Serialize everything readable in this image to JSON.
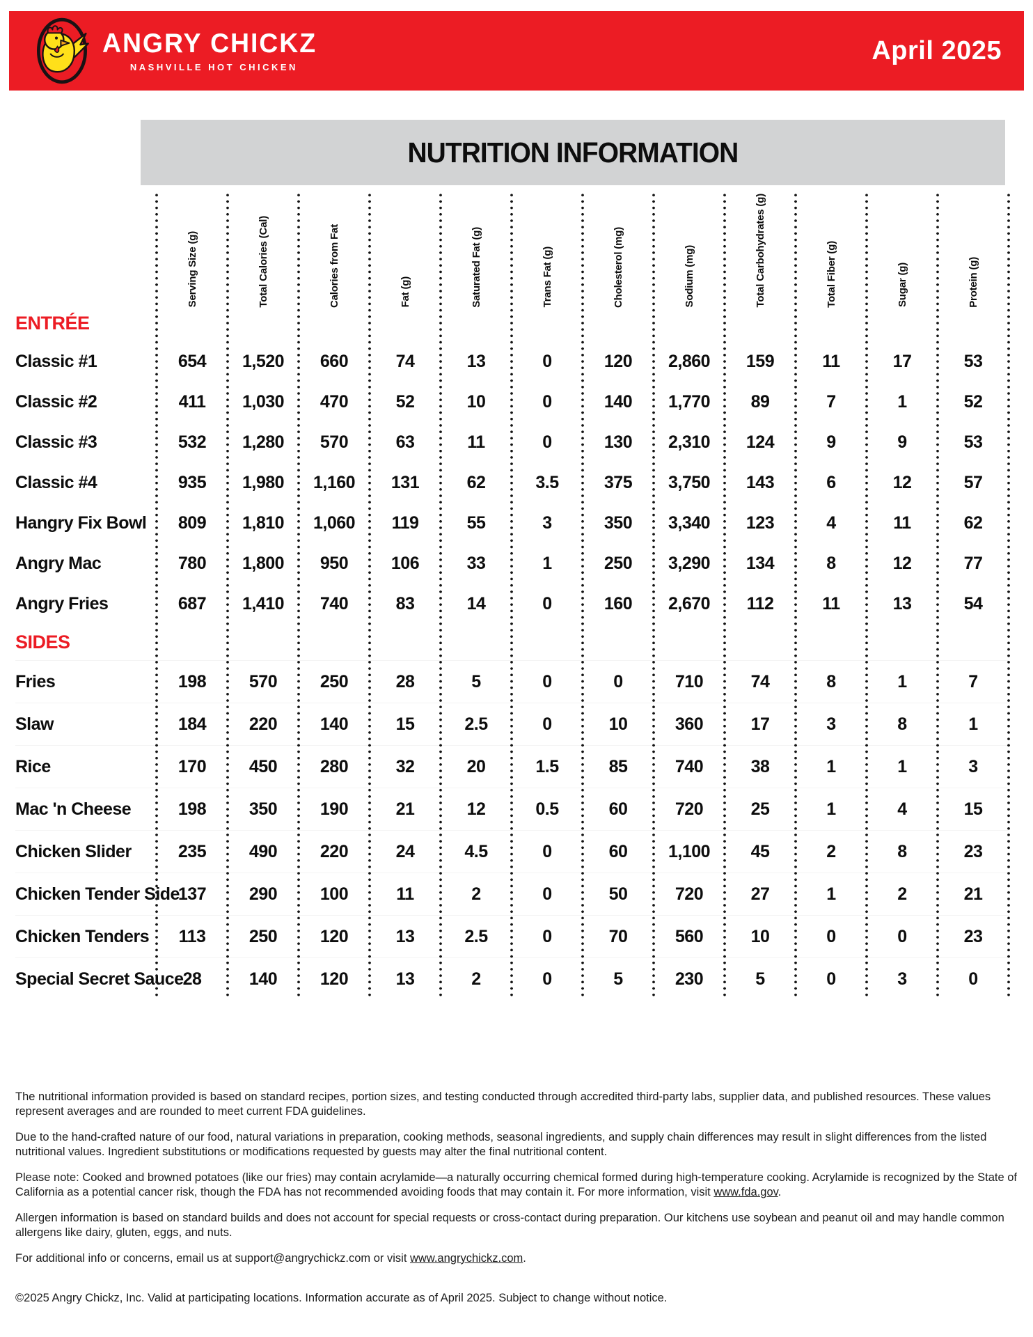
{
  "header": {
    "brand_name": "ANGRY CHICKZ",
    "brand_tagline": "NASHVILLE HOT CHICKEN",
    "date": "April 2025",
    "brand_color": "#EC1C24"
  },
  "title_bar": {
    "title": "NUTRITION INFORMATION",
    "bg_color": "#D2D3D4"
  },
  "table": {
    "columns": [
      "Serving Size (g)",
      "Total Calories (Cal)",
      "Calories from Fat",
      "Fat (g)",
      "Saturated Fat (g)",
      "Trans Fat (g)",
      "Cholesterol (mg)",
      "Sodium (mg)",
      "Total Carbohydrates (g)",
      "Total Fiber (g)",
      "Sugar (g)",
      "Protein (g)"
    ],
    "sections": [
      {
        "name": "ENTRÉE",
        "rows": [
          {
            "name": "Classic #1",
            "values": [
              "654",
              "1,520",
              "660",
              "74",
              "13",
              "0",
              "120",
              "2,860",
              "159",
              "11",
              "17",
              "53"
            ]
          },
          {
            "name": "Classic #2",
            "values": [
              "411",
              "1,030",
              "470",
              "52",
              "10",
              "0",
              "140",
              "1,770",
              "89",
              "7",
              "1",
              "52"
            ]
          },
          {
            "name": "Classic #3",
            "values": [
              "532",
              "1,280",
              "570",
              "63",
              "11",
              "0",
              "130",
              "2,310",
              "124",
              "9",
              "9",
              "53"
            ]
          },
          {
            "name": "Classic #4",
            "values": [
              "935",
              "1,980",
              "1,160",
              "131",
              "62",
              "3.5",
              "375",
              "3,750",
              "143",
              "6",
              "12",
              "57"
            ]
          },
          {
            "name": "Hangry Fix Bowl",
            "values": [
              "809",
              "1,810",
              "1,060",
              "119",
              "55",
              "3",
              "350",
              "3,340",
              "123",
              "4",
              "11",
              "62"
            ]
          },
          {
            "name": "Angry Mac",
            "values": [
              "780",
              "1,800",
              "950",
              "106",
              "33",
              "1",
              "250",
              "3,290",
              "134",
              "8",
              "12",
              "77"
            ]
          },
          {
            "name": "Angry Fries",
            "values": [
              "687",
              "1,410",
              "740",
              "83",
              "14",
              "0",
              "160",
              "2,670",
              "112",
              "11",
              "13",
              "54"
            ]
          }
        ]
      },
      {
        "name": "SIDES",
        "rows": [
          {
            "name": "Fries",
            "values": [
              "198",
              "570",
              "250",
              "28",
              "5",
              "0",
              "0",
              "710",
              "74",
              "8",
              "1",
              "7"
            ]
          },
          {
            "name": "Slaw",
            "values": [
              "184",
              "220",
              "140",
              "15",
              "2.5",
              "0",
              "10",
              "360",
              "17",
              "3",
              "8",
              "1"
            ]
          },
          {
            "name": "Rice",
            "values": [
              "170",
              "450",
              "280",
              "32",
              "20",
              "1.5",
              "85",
              "740",
              "38",
              "1",
              "1",
              "3"
            ]
          },
          {
            "name": "Mac 'n Cheese",
            "values": [
              "198",
              "350",
              "190",
              "21",
              "12",
              "0.5",
              "60",
              "720",
              "25",
              "1",
              "4",
              "15"
            ]
          },
          {
            "name": "Chicken Slider",
            "values": [
              "235",
              "490",
              "220",
              "24",
              "4.5",
              "0",
              "60",
              "1,100",
              "45",
              "2",
              "8",
              "23"
            ]
          },
          {
            "name": "Chicken Tender Side",
            "values": [
              "137",
              "290",
              "100",
              "11",
              "2",
              "0",
              "50",
              "720",
              "27",
              "1",
              "2",
              "21"
            ]
          },
          {
            "name": "Chicken Tenders",
            "values": [
              "113",
              "250",
              "120",
              "13",
              "2.5",
              "0",
              "70",
              "560",
              "10",
              "0",
              "0",
              "23"
            ]
          },
          {
            "name": "Special Secret Sauce",
            "values": [
              "28",
              "140",
              "120",
              "13",
              "2",
              "0",
              "5",
              "230",
              "5",
              "0",
              "3",
              "0"
            ]
          }
        ]
      }
    ]
  },
  "footer": {
    "paragraphs": [
      {
        "segments": [
          {
            "text": "The nutritional information provided is based on standard recipes, portion sizes, and testing conducted through accredited third-party labs, supplier data, and published resources. These values represent averages and are rounded to meet current FDA guidelines."
          }
        ]
      },
      {
        "segments": [
          {
            "text": "Due to the hand-crafted nature of our food, natural variations in preparation, cooking methods, seasonal ingredients, and supply chain differences may result in slight differences from the listed nutritional values. Ingredient substitutions or modifications requested by guests may alter the final nutritional content."
          }
        ]
      },
      {
        "segments": [
          {
            "text": "Please note: Cooked and browned potatoes (like our fries) may contain acrylamide—a naturally occurring chemical formed during high-temperature cooking. Acrylamide is recognized by the State of California as a potential cancer risk, though the FDA has not recommended avoiding foods that may contain it. For more information, visit "
          },
          {
            "text": "www.fda.gov",
            "link": true
          },
          {
            "text": "."
          }
        ]
      },
      {
        "segments": [
          {
            "text": "Allergen information is based on standard builds and does not account for special requests or cross-contact during preparation. Our kitchens use soybean and peanut oil and may handle common allergens like dairy, gluten, eggs, and nuts."
          }
        ]
      },
      {
        "segments": [
          {
            "text": "For additional info or concerns, email us at support@angrychickz.com or visit "
          },
          {
            "text": "www.angrychickz.com",
            "link": true
          },
          {
            "text": "."
          }
        ]
      },
      {
        "segments": [
          {
            "text": "©2025 Angry Chickz, Inc. Valid at participating locations. Information accurate as of April 2025. Subject to change without notice."
          }
        ]
      }
    ]
  }
}
